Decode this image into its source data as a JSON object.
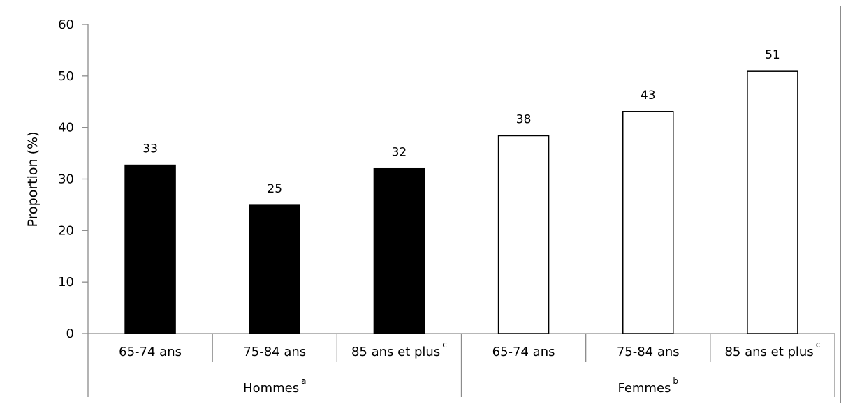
{
  "chart_data": {
    "type": "bar",
    "title": "",
    "xlabel": "",
    "ylabel": "Proportion (%)",
    "ylim": [
      0,
      60
    ],
    "yticks": [
      0,
      10,
      20,
      30,
      40,
      50,
      60
    ],
    "grid": false,
    "legend": "none",
    "bars": [
      {
        "category": "65-74 ans",
        "superscript": "",
        "group": "Hommes",
        "value": 32.7,
        "label": "33",
        "style": "filled"
      },
      {
        "category": "75-84 ans",
        "superscript": "",
        "group": "Hommes",
        "value": 24.9,
        "label": "25",
        "style": "filled"
      },
      {
        "category": "85 ans et plus",
        "superscript": "c",
        "group": "Hommes",
        "value": 32.0,
        "label": "32",
        "style": "filled"
      },
      {
        "category": "65-74 ans",
        "superscript": "",
        "group": "Femmes",
        "value": 38.4,
        "label": "38",
        "style": "outline"
      },
      {
        "category": "75-84 ans",
        "superscript": "",
        "group": "Femmes",
        "value": 43.1,
        "label": "43",
        "style": "outline"
      },
      {
        "category": "85 ans et plus",
        "superscript": "c",
        "group": "Femmes",
        "value": 50.9,
        "label": "51",
        "style": "outline"
      }
    ],
    "groups": [
      {
        "name": "Hommes",
        "superscript": "a"
      },
      {
        "name": "Femmes",
        "superscript": "b"
      }
    ],
    "colors": {
      "filled": "#000000",
      "outline_fill": "#ffffff",
      "outline_stroke": "#000000",
      "axis": "#8c8c8c"
    }
  }
}
